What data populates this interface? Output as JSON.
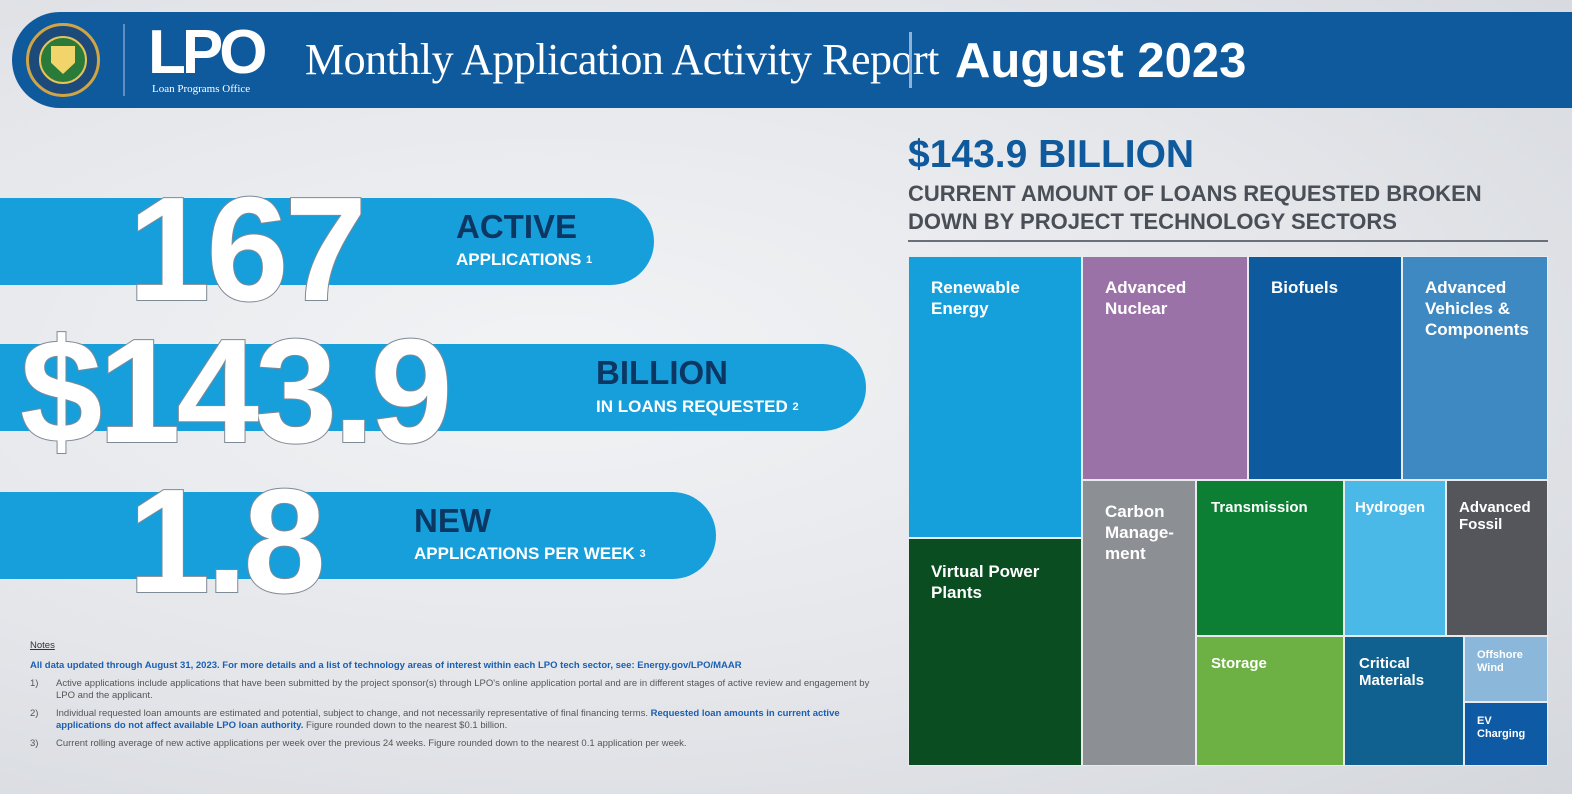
{
  "header": {
    "seal_name": "Department of Energy seal",
    "logo_text": "LPO",
    "logo_sub": "Loan Programs Office",
    "title": "Monthly Application Activity Report",
    "date": "August 2023"
  },
  "stats": [
    {
      "number": "167",
      "label": "ACTIVE",
      "sub": "APPLICATIONS",
      "note": "1"
    },
    {
      "number": "$143.9",
      "label": "BILLION",
      "sub": "IN LOANS REQUESTED",
      "note": "2"
    },
    {
      "number": "1.8",
      "label": "NEW",
      "sub": "APPLICATIONS PER WEEK",
      "note": "3"
    }
  ],
  "notes": {
    "title": "Notes",
    "lead_bold": "All data updated through August 31, 2023.",
    "lead_rest": " For more details and a list of technology areas of interest within each LPO tech sector, see: ",
    "lead_link": "Energy.gov/LPO/MAAR",
    "items": [
      {
        "num": "1)",
        "text": "Active applications include applications that have been submitted by the project sponsor(s) through LPO's online application portal and are in different stages of active review and engagement by LPO and the applicant."
      },
      {
        "num": "2)",
        "text_a": "Individual requested loan amounts are estimated and potential, subject to change, and not necessarily representative of final financing terms. ",
        "text_hl": "Requested loan amounts in current active applications do not affect available LPO loan authority.",
        "text_b": " Figure rounded down to the nearest $0.1 billion."
      },
      {
        "num": "3)",
        "text": "Current rolling average of new active applications per week over the previous 24 weeks. Figure rounded down to the nearest 0.1 application per week."
      }
    ]
  },
  "treemap": {
    "amount": "$143.9 BILLION",
    "subtitle": "CURRENT AMOUNT OF LOANS REQUESTED BROKEN DOWN BY PROJECT TECHNOLOGY SECTORS",
    "cells": [
      {
        "label": "Renewable Energy",
        "color": "#15a0dc"
      },
      {
        "label": "Advanced Nuclear",
        "color": "#9b72a8"
      },
      {
        "label": "Biofuels",
        "color": "#0d5a9e"
      },
      {
        "label": "Advanced Vehicles & Components",
        "color": "#3f89c2"
      },
      {
        "label": "Virtual Power Plants",
        "color": "#0a4d21"
      },
      {
        "label": "Carbon Manage-ment",
        "color": "#8c8f93"
      },
      {
        "label": "Transmission",
        "color": "#0d7f34"
      },
      {
        "label": "Hydrogen",
        "color": "#4bb9e8"
      },
      {
        "label": "Advanced Fossil",
        "color": "#54565c"
      },
      {
        "label": "Storage",
        "color": "#6db043"
      },
      {
        "label": "Critical Materials",
        "color": "#10618f"
      },
      {
        "label": "Offshore Wind",
        "color": "#8ab7da"
      },
      {
        "label": "EV Charging",
        "color": "#0e5aa4"
      }
    ]
  }
}
